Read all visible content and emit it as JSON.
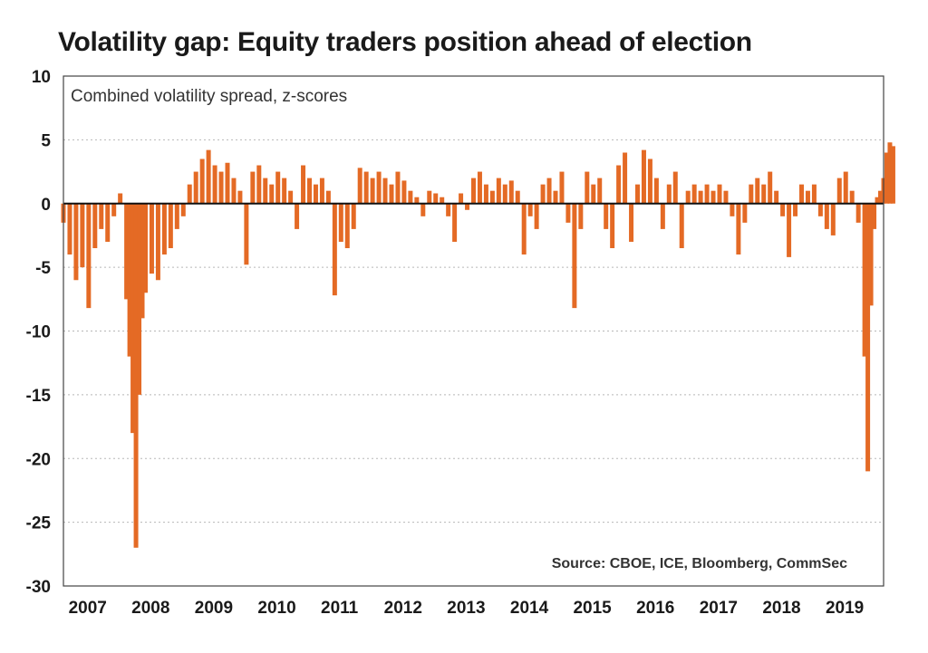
{
  "chart_data": {
    "type": "bar",
    "title": "Volatility gap: Equity traders position ahead of election",
    "subtitle": "Combined volatility spread, z-scores",
    "source": "Source: CBOE, ICE, Bloomberg, CommSec",
    "xlabel": "",
    "ylabel": "",
    "xlim": [
      2007.0,
      2020.0
    ],
    "ylim": [
      -30,
      10
    ],
    "y_ticks": [
      10,
      5,
      0,
      -5,
      -10,
      -15,
      -20,
      -25,
      -30
    ],
    "x_tick_labels": [
      "2007",
      "2008",
      "2009",
      "2010",
      "2011",
      "2012",
      "2013",
      "2014",
      "2015",
      "2016",
      "2017",
      "2018",
      "2019"
    ],
    "grid": true,
    "legend": "none",
    "bar_color": "#e46a25",
    "zero_line_color": "#111111",
    "series": [
      {
        "points": [
          [
            2007.0,
            -1.5
          ],
          [
            2007.1,
            -4.0
          ],
          [
            2007.2,
            -6.0
          ],
          [
            2007.3,
            -5.0
          ],
          [
            2007.4,
            -8.2
          ],
          [
            2007.5,
            -3.5
          ],
          [
            2007.6,
            -2.0
          ],
          [
            2007.7,
            -3.0
          ],
          [
            2007.8,
            -1.0
          ],
          [
            2007.9,
            0.8
          ],
          [
            2008.0,
            -7.5
          ],
          [
            2008.05,
            -12.0
          ],
          [
            2008.1,
            -18.0
          ],
          [
            2008.15,
            -27.0
          ],
          [
            2008.2,
            -15.0
          ],
          [
            2008.25,
            -9.0
          ],
          [
            2008.3,
            -7.0
          ],
          [
            2008.4,
            -5.5
          ],
          [
            2008.5,
            -6.0
          ],
          [
            2008.6,
            -4.0
          ],
          [
            2008.7,
            -3.5
          ],
          [
            2008.8,
            -2.0
          ],
          [
            2008.9,
            -1.0
          ],
          [
            2009.0,
            1.5
          ],
          [
            2009.1,
            2.5
          ],
          [
            2009.2,
            3.5
          ],
          [
            2009.3,
            4.2
          ],
          [
            2009.4,
            3.0
          ],
          [
            2009.5,
            2.5
          ],
          [
            2009.6,
            3.2
          ],
          [
            2009.7,
            2.0
          ],
          [
            2009.8,
            1.0
          ],
          [
            2009.9,
            -4.8
          ],
          [
            2010.0,
            2.5
          ],
          [
            2010.1,
            3.0
          ],
          [
            2010.2,
            2.0
          ],
          [
            2010.3,
            1.5
          ],
          [
            2010.4,
            2.5
          ],
          [
            2010.5,
            2.0
          ],
          [
            2010.6,
            1.0
          ],
          [
            2010.7,
            -2.0
          ],
          [
            2010.8,
            3.0
          ],
          [
            2010.9,
            2.0
          ],
          [
            2011.0,
            1.5
          ],
          [
            2011.1,
            2.0
          ],
          [
            2011.2,
            1.0
          ],
          [
            2011.3,
            -7.2
          ],
          [
            2011.4,
            -3.0
          ],
          [
            2011.5,
            -3.5
          ],
          [
            2011.6,
            -2.0
          ],
          [
            2011.7,
            2.8
          ],
          [
            2011.8,
            2.5
          ],
          [
            2011.9,
            2.0
          ],
          [
            2012.0,
            2.5
          ],
          [
            2012.1,
            2.0
          ],
          [
            2012.2,
            1.5
          ],
          [
            2012.3,
            2.5
          ],
          [
            2012.4,
            1.8
          ],
          [
            2012.5,
            1.0
          ],
          [
            2012.6,
            0.5
          ],
          [
            2012.7,
            -1.0
          ],
          [
            2012.8,
            1.0
          ],
          [
            2012.9,
            0.8
          ],
          [
            2013.0,
            0.5
          ],
          [
            2013.1,
            -1.0
          ],
          [
            2013.2,
            -3.0
          ],
          [
            2013.3,
            0.8
          ],
          [
            2013.4,
            -0.5
          ],
          [
            2013.5,
            2.0
          ],
          [
            2013.6,
            2.5
          ],
          [
            2013.7,
            1.5
          ],
          [
            2013.8,
            1.0
          ],
          [
            2013.9,
            2.0
          ],
          [
            2014.0,
            1.5
          ],
          [
            2014.1,
            1.8
          ],
          [
            2014.2,
            1.0
          ],
          [
            2014.3,
            -4.0
          ],
          [
            2014.4,
            -1.0
          ],
          [
            2014.5,
            -2.0
          ],
          [
            2014.6,
            1.5
          ],
          [
            2014.7,
            2.0
          ],
          [
            2014.8,
            1.0
          ],
          [
            2014.9,
            2.5
          ],
          [
            2015.0,
            -1.5
          ],
          [
            2015.1,
            -8.2
          ],
          [
            2015.2,
            -2.0
          ],
          [
            2015.3,
            2.5
          ],
          [
            2015.4,
            1.5
          ],
          [
            2015.5,
            2.0
          ],
          [
            2015.6,
            -2.0
          ],
          [
            2015.7,
            -3.5
          ],
          [
            2015.8,
            3.0
          ],
          [
            2015.9,
            4.0
          ],
          [
            2016.0,
            -3.0
          ],
          [
            2016.1,
            1.5
          ],
          [
            2016.2,
            4.2
          ],
          [
            2016.3,
            3.5
          ],
          [
            2016.4,
            2.0
          ],
          [
            2016.5,
            -2.0
          ],
          [
            2016.6,
            1.5
          ],
          [
            2016.7,
            2.5
          ],
          [
            2016.8,
            -3.5
          ],
          [
            2016.9,
            1.0
          ],
          [
            2017.0,
            1.5
          ],
          [
            2017.1,
            1.0
          ],
          [
            2017.2,
            1.5
          ],
          [
            2017.3,
            1.0
          ],
          [
            2017.4,
            1.5
          ],
          [
            2017.5,
            1.0
          ],
          [
            2017.6,
            -1.0
          ],
          [
            2017.7,
            -4.0
          ],
          [
            2017.8,
            -1.5
          ],
          [
            2017.9,
            1.5
          ],
          [
            2018.0,
            2.0
          ],
          [
            2018.1,
            1.5
          ],
          [
            2018.2,
            2.5
          ],
          [
            2018.3,
            1.0
          ],
          [
            2018.4,
            -1.0
          ],
          [
            2018.5,
            -4.2
          ],
          [
            2018.6,
            -1.0
          ],
          [
            2018.7,
            1.5
          ],
          [
            2018.8,
            1.0
          ],
          [
            2018.9,
            1.5
          ],
          [
            2019.0,
            -1.0
          ],
          [
            2019.1,
            -2.0
          ],
          [
            2019.2,
            -2.5
          ],
          [
            2019.3,
            2.0
          ],
          [
            2019.4,
            2.5
          ],
          [
            2019.5,
            1.0
          ],
          [
            2019.6,
            -1.5
          ],
          [
            2019.7,
            -12.0
          ],
          [
            2019.75,
            -21.0
          ],
          [
            2019.8,
            -8.0
          ],
          [
            2019.85,
            -2.0
          ],
          [
            2019.9,
            0.5
          ],
          [
            2019.95,
            1.0
          ],
          [
            2020.0,
            2.0
          ],
          [
            2020.05,
            4.0
          ],
          [
            2020.1,
            4.8
          ],
          [
            2020.15,
            4.5
          ]
        ]
      }
    ]
  }
}
